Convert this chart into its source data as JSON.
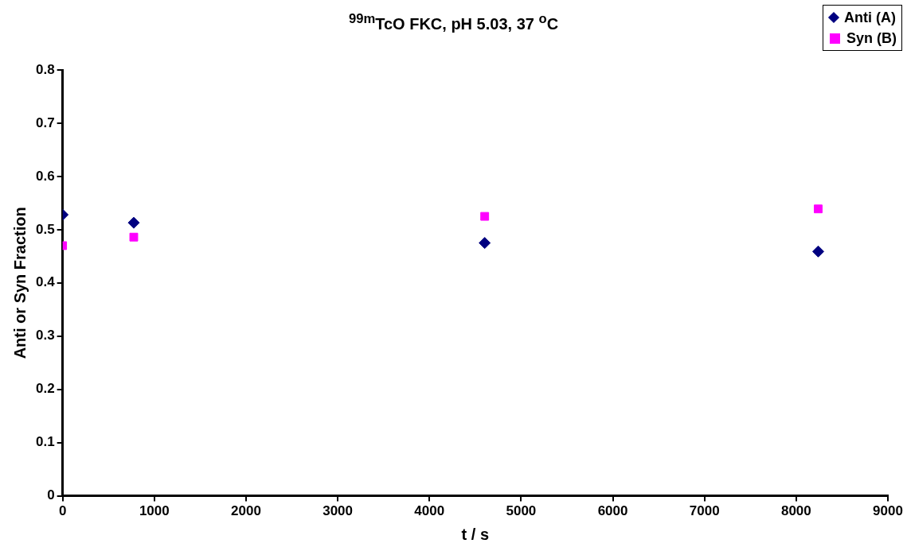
{
  "chart_data": {
    "type": "scatter",
    "title": "$^{99m}$TcO FKC, pH 5.03, 37 $^{o}$C",
    "xlabel": "t / s",
    "ylabel": "Anti or Syn Fraction",
    "xlim": [
      0,
      9000
    ],
    "xticks": [
      0,
      1000,
      2000,
      3000,
      4000,
      5000,
      6000,
      7000,
      8000,
      9000
    ],
    "ylim": [
      0,
      0.8
    ],
    "yticks": [
      0,
      {
        "value": 0.1,
        "label": "0.1"
      },
      {
        "value": 0.2,
        "label": "0.2"
      },
      {
        "value": 0.3,
        "label": "0.3"
      },
      {
        "value": 0.4,
        "label": "0.4"
      },
      {
        "value": 0.5,
        "label": "0.5"
      },
      {
        "value": 0.6,
        "label": "0.6"
      },
      {
        "value": 0.7,
        "label": "0.7"
      },
      {
        "value": 0.8,
        "label": "0.8"
      }
    ],
    "grid": false,
    "legend": "top right",
    "series": [
      {
        "name": "Anti (A)",
        "color": "#000080",
        "marker": "diamond",
        "x": [
          0,
          776,
          4603,
          8240
        ],
        "values": [
          0.528,
          0.513,
          0.475,
          0.459
        ]
      },
      {
        "name": "Syn (B)",
        "color": "#ff00ff",
        "marker": "square",
        "x": [
          0,
          776,
          4603,
          8240
        ],
        "values": [
          0.47,
          0.486,
          0.525,
          0.539
        ]
      }
    ]
  }
}
